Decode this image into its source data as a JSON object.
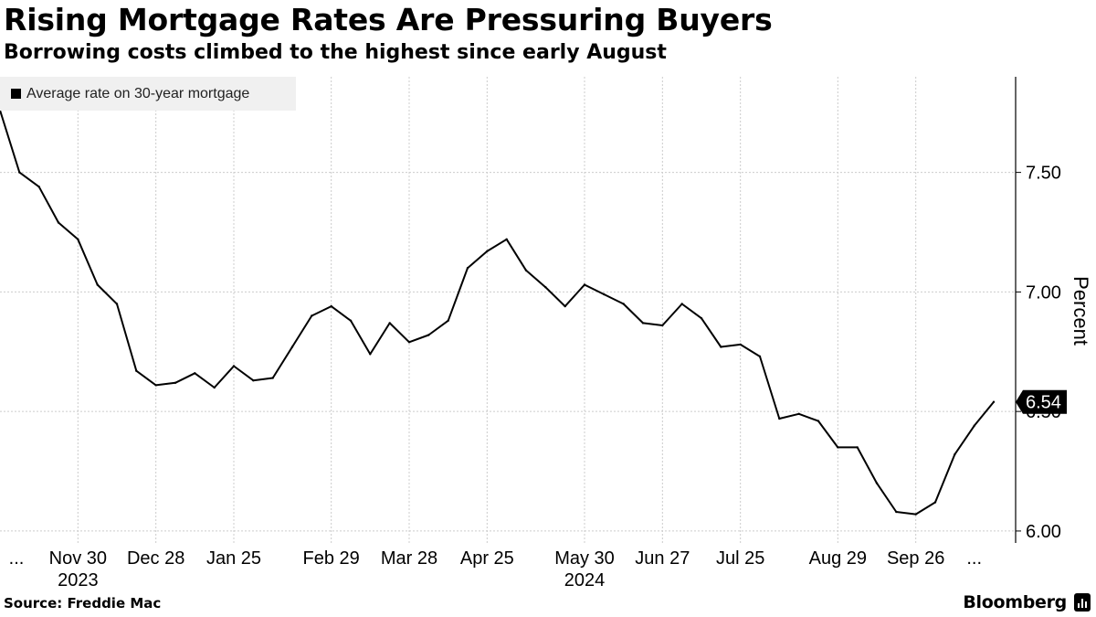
{
  "title": "Rising Mortgage Rates Are Pressuring Buyers",
  "subtitle": "Borrowing costs climbed to the highest since early August",
  "source": "Source: Freddie Mac",
  "brand": "Bloomberg",
  "brand_icon": "bloomberg-chart-icon",
  "colors": {
    "line": "#000000",
    "grid": "#cccccc",
    "legend_bg": "#f0f0f0",
    "last_label_bg": "#000000",
    "last_label_text": "#ffffff"
  },
  "chart_data": {
    "type": "line",
    "title": "Rising Mortgage Rates Are Pressuring Buyers",
    "subtitle": "Borrowing costs climbed to the highest since early August",
    "xlabel": "",
    "ylabel": "Percent",
    "ylim": [
      5.95,
      7.9
    ],
    "y_ticks": [
      6.0,
      6.5,
      7.0,
      7.5
    ],
    "y_tick_labels": [
      "6.00",
      "6.50",
      "7.00",
      "7.50"
    ],
    "grid": true,
    "legend": "top-left",
    "x_tick_labels": [
      {
        "index": 0,
        "label": "...",
        "sub": ""
      },
      {
        "index": 4,
        "label": "Nov 30",
        "sub": "2023"
      },
      {
        "index": 8,
        "label": "Dec 28",
        "sub": ""
      },
      {
        "index": 12,
        "label": "Jan 25",
        "sub": ""
      },
      {
        "index": 17,
        "label": "Feb 29",
        "sub": ""
      },
      {
        "index": 21,
        "label": "Mar 28",
        "sub": ""
      },
      {
        "index": 25,
        "label": "Apr 25",
        "sub": ""
      },
      {
        "index": 30,
        "label": "May 30",
        "sub": "2024"
      },
      {
        "index": 34,
        "label": "Jun 27",
        "sub": ""
      },
      {
        "index": 38,
        "label": "Jul 25",
        "sub": ""
      },
      {
        "index": 43,
        "label": "Aug 29",
        "sub": ""
      },
      {
        "index": 47,
        "label": "Sep 26",
        "sub": ""
      },
      {
        "index": 50,
        "label": "...",
        "sub": ""
      }
    ],
    "series": [
      {
        "name": "Average rate on 30-year mortgage",
        "values": [
          7.76,
          7.5,
          7.44,
          7.29,
          7.22,
          7.03,
          6.95,
          6.67,
          6.61,
          6.62,
          6.66,
          6.6,
          6.69,
          6.63,
          6.64,
          6.77,
          6.9,
          6.94,
          6.88,
          6.74,
          6.87,
          6.79,
          6.82,
          6.88,
          7.1,
          7.17,
          7.22,
          7.09,
          7.02,
          6.94,
          7.03,
          6.99,
          6.95,
          6.87,
          6.86,
          6.95,
          6.89,
          6.77,
          6.78,
          6.73,
          6.47,
          6.49,
          6.46,
          6.35,
          6.35,
          6.2,
          6.08,
          6.07,
          6.12,
          6.32,
          6.44,
          6.54
        ]
      }
    ],
    "last_value_label": "6.54"
  }
}
